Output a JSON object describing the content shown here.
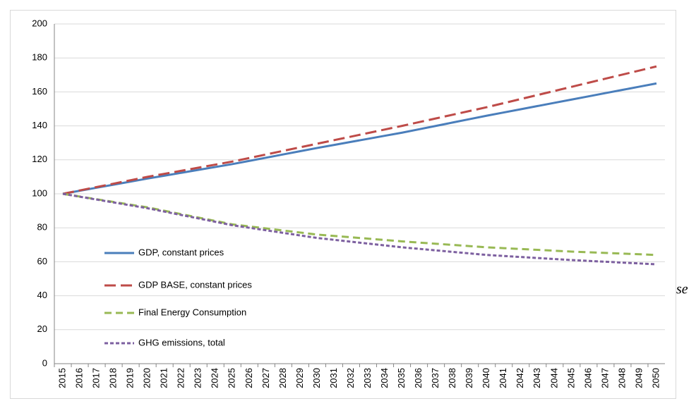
{
  "chart_data": {
    "type": "line",
    "categories": [
      "2015",
      "2016",
      "2017",
      "2018",
      "2019",
      "2020",
      "2021",
      "2022",
      "2023",
      "2024",
      "2025",
      "2026",
      "2027",
      "2028",
      "2029",
      "2030",
      "2031",
      "2032",
      "2033",
      "2034",
      "2035",
      "2036",
      "2037",
      "2038",
      "2039",
      "2040",
      "2041",
      "2042",
      "2043",
      "2044",
      "2045",
      "2046",
      "2047",
      "2048",
      "2049",
      "2050"
    ],
    "series": [
      {
        "name": "GDP, constant prices",
        "color": "#4a7ebb",
        "style": "solid",
        "values": [
          100,
          101.8,
          103.6,
          105.4,
          107.2,
          109,
          110.7,
          112.4,
          114.1,
          115.8,
          117.5,
          119.4,
          121.3,
          123.2,
          125.1,
          127,
          128.8,
          130.6,
          132.4,
          134.2,
          136,
          138,
          140,
          142,
          144,
          146,
          147.9,
          149.8,
          151.7,
          153.6,
          155.5,
          157.4,
          159.3,
          161.2,
          163.1,
          165
        ]
      },
      {
        "name": "GDP BASE, constant prices",
        "color": "#be4b48",
        "style": "long-dash",
        "values": [
          100,
          102,
          104,
          106,
          108,
          110,
          111.8,
          113.6,
          115.4,
          117.2,
          119,
          121.1,
          123.2,
          125.3,
          127.4,
          129.5,
          131.6,
          133.7,
          135.8,
          137.9,
          140,
          142.2,
          144.4,
          146.6,
          148.8,
          151,
          153.4,
          155.8,
          158.2,
          160.6,
          163,
          165.4,
          167.8,
          170.2,
          172.6,
          175
        ]
      },
      {
        "name": "Final Energy Consumption",
        "color": "#98b954",
        "style": "dash",
        "values": [
          100,
          98.4,
          96.8,
          95.2,
          93.6,
          92,
          90,
          88,
          86,
          84,
          82,
          80.8,
          79.6,
          78.4,
          77.2,
          76,
          75.2,
          74.4,
          73.6,
          72.8,
          72,
          71.3,
          70.6,
          69.9,
          69.2,
          68.5,
          68,
          67.5,
          67,
          66.5,
          66,
          65.6,
          65.2,
          64.8,
          64.4,
          64
        ]
      },
      {
        "name": "GHG emissions, total",
        "color": "#7d60a0",
        "style": "short-dash",
        "values": [
          100,
          98.3,
          96.6,
          94.9,
          93.2,
          91.5,
          89.5,
          87.5,
          85.5,
          83.5,
          81.5,
          80,
          78.5,
          77,
          75.5,
          74,
          72.9,
          71.8,
          70.7,
          69.6,
          68.5,
          67.6,
          66.7,
          65.8,
          64.9,
          64,
          63.4,
          62.8,
          62.2,
          61.6,
          61,
          60.5,
          60,
          59.5,
          59,
          58.5
        ]
      }
    ],
    "ylim": [
      0,
      200
    ],
    "yticks": [
      0,
      20,
      40,
      60,
      80,
      100,
      120,
      140,
      160,
      180,
      200
    ],
    "grid": true,
    "legend": "lower-left",
    "annotation": "se"
  }
}
